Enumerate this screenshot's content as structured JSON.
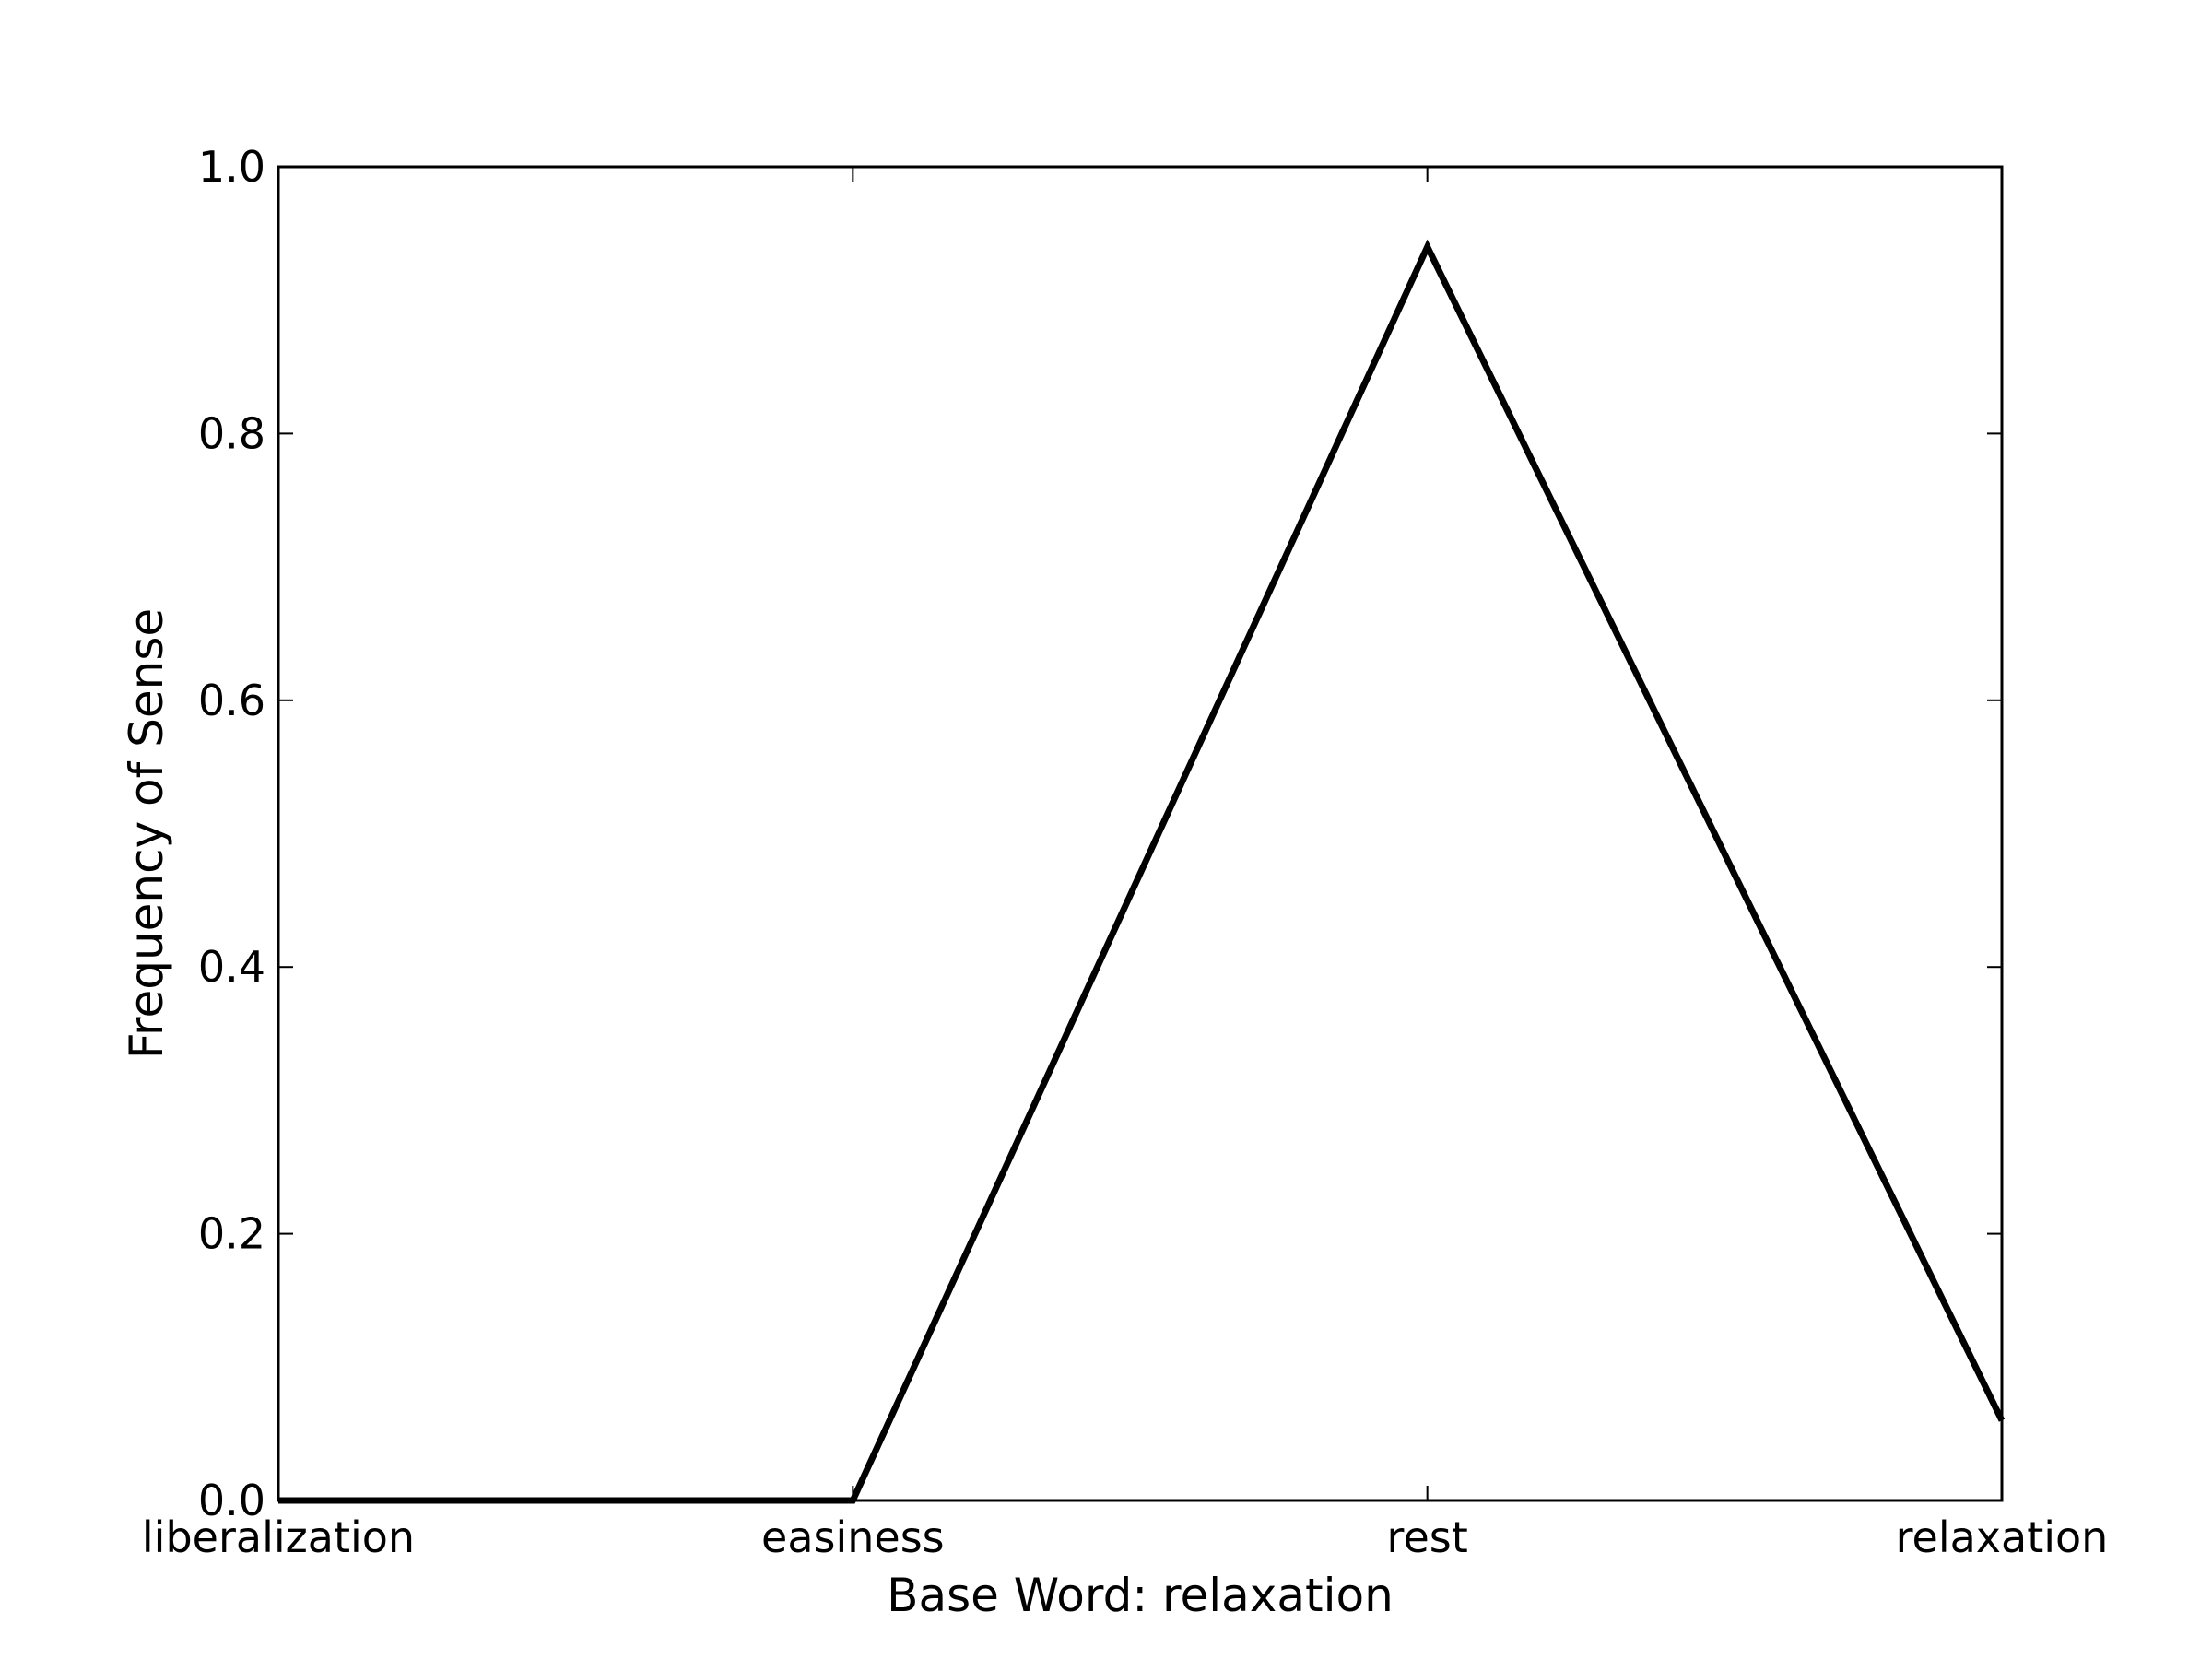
{
  "chart_data": {
    "type": "line",
    "title": "",
    "xlabel": "Base Word: relaxation",
    "ylabel": "Frequency of Sense",
    "categories": [
      "liberalization",
      "easiness",
      "rest",
      "relaxation"
    ],
    "series": [
      {
        "values": [
          0.0,
          0.0,
          0.94,
          0.06
        ]
      }
    ],
    "ylim": [
      0.0,
      1.0
    ],
    "yticks": [
      "0.0",
      "0.2",
      "0.4",
      "0.6",
      "0.8",
      "1.0"
    ],
    "grid": false,
    "legend": "none",
    "line_color": "#000000",
    "background_color": "#ffffff"
  }
}
